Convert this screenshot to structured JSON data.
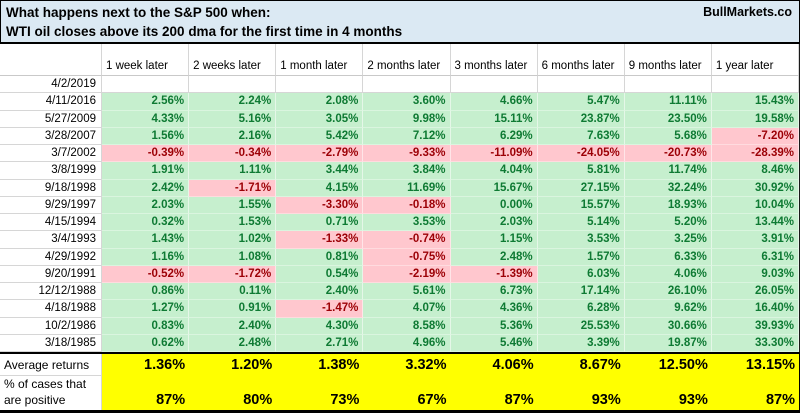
{
  "title": {
    "line1": "What happens next to the S&P 500 when:",
    "line2": "WTI oil closes above its 200 dma for the first time in 4 months",
    "brand": "BullMarkets.co"
  },
  "table": {
    "columns": [
      "1 week later",
      "2 weeks later",
      "1 month later",
      "2 months later",
      "3 months later",
      "6 months later",
      "9 months later",
      "1 year later"
    ],
    "rows": [
      {
        "date": "4/2/2019",
        "values": [
          "",
          "",
          "",
          "",
          "",
          "",
          "",
          ""
        ]
      },
      {
        "date": "4/11/2016",
        "values": [
          "2.56%",
          "2.24%",
          "2.08%",
          "3.60%",
          "4.66%",
          "5.47%",
          "11.11%",
          "15.43%"
        ]
      },
      {
        "date": "5/27/2009",
        "values": [
          "4.33%",
          "5.16%",
          "3.05%",
          "9.98%",
          "15.11%",
          "23.87%",
          "23.50%",
          "19.58%"
        ]
      },
      {
        "date": "3/28/2007",
        "values": [
          "1.56%",
          "2.16%",
          "5.42%",
          "7.12%",
          "6.29%",
          "7.63%",
          "5.68%",
          "-7.20%"
        ]
      },
      {
        "date": "3/7/2002",
        "values": [
          "-0.39%",
          "-0.34%",
          "-2.79%",
          "-9.33%",
          "-11.09%",
          "-24.05%",
          "-20.73%",
          "-28.39%"
        ]
      },
      {
        "date": "3/8/1999",
        "values": [
          "1.91%",
          "1.11%",
          "3.44%",
          "3.84%",
          "4.04%",
          "5.81%",
          "11.74%",
          "8.46%"
        ]
      },
      {
        "date": "9/18/1998",
        "values": [
          "2.42%",
          "-1.71%",
          "4.15%",
          "11.69%",
          "15.67%",
          "27.15%",
          "32.24%",
          "30.92%"
        ]
      },
      {
        "date": "9/29/1997",
        "values": [
          "2.03%",
          "1.55%",
          "-3.30%",
          "-0.18%",
          "0.00%",
          "15.57%",
          "18.93%",
          "10.04%"
        ]
      },
      {
        "date": "4/15/1994",
        "values": [
          "0.32%",
          "1.53%",
          "0.71%",
          "3.53%",
          "2.03%",
          "5.14%",
          "5.20%",
          "13.44%"
        ]
      },
      {
        "date": "3/4/1993",
        "values": [
          "1.43%",
          "1.02%",
          "-1.33%",
          "-0.74%",
          "1.15%",
          "3.53%",
          "3.25%",
          "3.91%"
        ]
      },
      {
        "date": "4/29/1992",
        "values": [
          "1.16%",
          "1.08%",
          "0.81%",
          "-0.75%",
          "2.48%",
          "1.57%",
          "6.33%",
          "6.31%"
        ]
      },
      {
        "date": "9/20/1991",
        "values": [
          "-0.52%",
          "-1.72%",
          "0.54%",
          "-2.19%",
          "-1.39%",
          "6.03%",
          "4.06%",
          "9.03%"
        ]
      },
      {
        "date": "12/12/1988",
        "values": [
          "0.86%",
          "0.11%",
          "2.40%",
          "5.61%",
          "6.73%",
          "17.14%",
          "26.10%",
          "26.05%"
        ]
      },
      {
        "date": "4/18/1988",
        "values": [
          "1.27%",
          "0.91%",
          "-1.47%",
          "4.07%",
          "4.36%",
          "6.28%",
          "9.62%",
          "16.40%"
        ]
      },
      {
        "date": "10/2/1986",
        "values": [
          "0.83%",
          "2.40%",
          "4.30%",
          "8.58%",
          "5.36%",
          "25.53%",
          "30.66%",
          "39.93%"
        ]
      },
      {
        "date": "3/18/1985",
        "values": [
          "0.62%",
          "2.48%",
          "2.71%",
          "4.96%",
          "5.46%",
          "3.39%",
          "19.87%",
          "33.30%"
        ]
      }
    ]
  },
  "summary": {
    "avg_label": "Average returns",
    "pct_label_line1": "% of cases that",
    "pct_label_line2": "are positive",
    "avg_values": [
      "1.36%",
      "1.20%",
      "1.38%",
      "3.32%",
      "4.06%",
      "8.67%",
      "12.50%",
      "13.15%"
    ],
    "pct_values": [
      "87%",
      "80%",
      "73%",
      "67%",
      "87%",
      "93%",
      "93%",
      "87%"
    ]
  },
  "colors": {
    "header_bg": "#dbe9f3",
    "positive_bg": "#c6efce",
    "positive_text": "#0e7a33",
    "negative_bg": "#ffc7ce",
    "negative_text": "#9c0006",
    "summary_bg": "#ffff00",
    "gridline": "#d6d6d6",
    "border": "#000000"
  }
}
